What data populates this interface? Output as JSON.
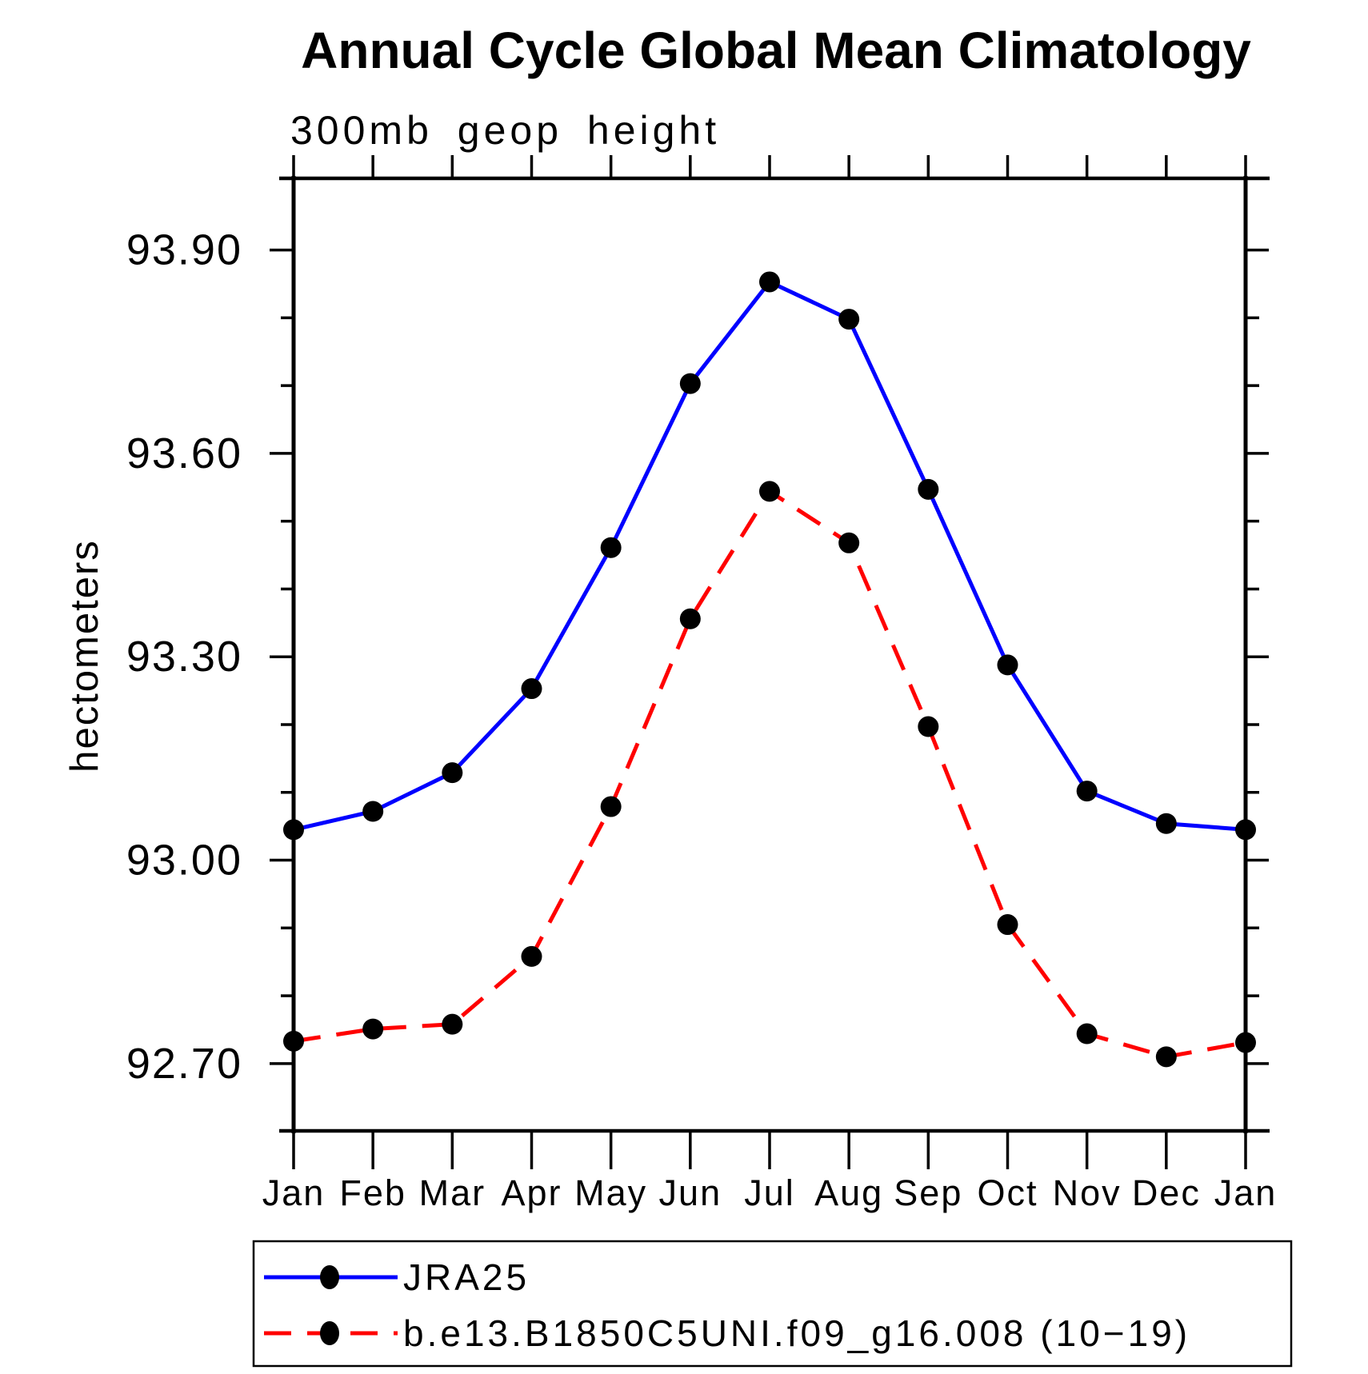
{
  "chart_data": {
    "type": "line",
    "title": "Annual Cycle Global Mean Climatology",
    "subtitle": "300mb geop height",
    "ylabel": "hectometers",
    "xlabel": "",
    "categories": [
      "Jan",
      "Feb",
      "Mar",
      "Apr",
      "May",
      "Jun",
      "Jul",
      "Aug",
      "Sep",
      "Oct",
      "Nov",
      "Dec",
      "Jan"
    ],
    "series": [
      {
        "name": "JRA25",
        "color": "#0000ff",
        "line_style": "solid",
        "marker": "filled-circle",
        "marker_color": "#000000",
        "values": [
          93.045,
          93.072,
          93.129,
          93.253,
          93.461,
          93.703,
          93.853,
          93.798,
          93.547,
          93.288,
          93.102,
          93.054,
          93.045
        ]
      },
      {
        "name": "b.e13.B1850C5UNI.f09_g16.008 (10−19)",
        "color": "#ff0000",
        "line_style": "dashed",
        "marker": "filled-circle",
        "marker_color": "#000000",
        "values": [
          92.733,
          92.751,
          92.758,
          92.858,
          93.079,
          93.356,
          93.544,
          93.468,
          93.197,
          92.905,
          92.744,
          92.71,
          92.731
        ]
      }
    ],
    "y_axis": {
      "major_ticks": [
        93.9,
        93.6,
        93.3,
        93.0,
        92.7
      ],
      "major_tick_labels": [
        "93.90",
        "93.60",
        "93.30",
        "93.00",
        "92.70"
      ],
      "minor_tick_step": 0.1,
      "min": 92.6,
      "max": 94.01
    },
    "x_axis": {
      "ticks_on_top_and_bottom": true,
      "tick_labels": [
        "Jan",
        "Feb",
        "Mar",
        "Apr",
        "May",
        "Jun",
        "Jul",
        "Aug",
        "Sep",
        "Oct",
        "Nov",
        "Dec",
        "Jan"
      ]
    },
    "legend": {
      "position": "bottom",
      "entries": [
        "JRA25",
        "b.e13.B1850C5UNI.f09_g16.008 (10−19)"
      ]
    },
    "grid": false
  }
}
